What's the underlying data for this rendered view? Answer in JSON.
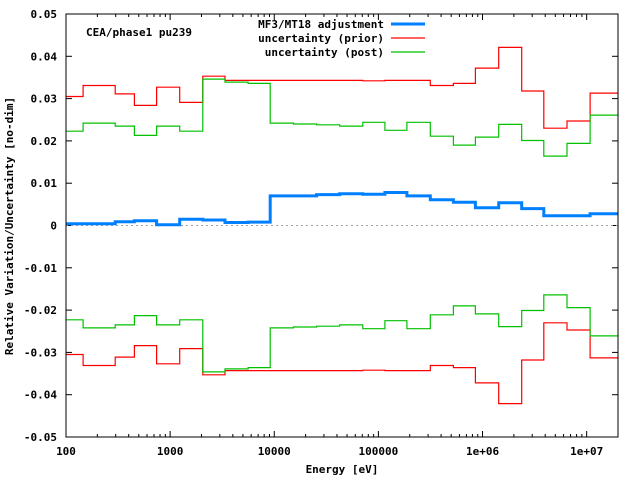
{
  "chart_data": {
    "type": "line",
    "step": true,
    "annotation": "CEA/phase1 pu239",
    "xlabel": "Energy [eV]",
    "ylabel": "Relative Variation/Uncertainty [no-dim]",
    "xscale": "log",
    "xlim": [
      100,
      20000000
    ],
    "ylim": [
      -0.05,
      0.05
    ],
    "xticks": [
      {
        "value": 100,
        "label": "100"
      },
      {
        "value": 1000,
        "label": "1000"
      },
      {
        "value": 10000,
        "label": "10000"
      },
      {
        "value": 100000,
        "label": "100000"
      },
      {
        "value": 1000000,
        "label": "1e+06"
      },
      {
        "value": 10000000,
        "label": "1e+07"
      }
    ],
    "yticks": [
      {
        "value": 0.05,
        "label": "0.05"
      },
      {
        "value": 0.04,
        "label": "0.04"
      },
      {
        "value": 0.03,
        "label": "0.03"
      },
      {
        "value": 0.02,
        "label": "0.02"
      },
      {
        "value": 0.01,
        "label": "0.01"
      },
      {
        "value": 0,
        "label": "0"
      },
      {
        "value": -0.01,
        "label": "-0.01"
      },
      {
        "value": -0.02,
        "label": "-0.02"
      },
      {
        "value": -0.03,
        "label": "-0.03"
      },
      {
        "value": -0.04,
        "label": "-0.04"
      },
      {
        "value": -0.05,
        "label": "-0.05"
      }
    ],
    "legend_position": "top-right",
    "bin_edges": [
      100,
      146,
      297,
      454,
      741,
      1236,
      2061,
      3365,
      5610,
      9140,
      15280,
      25500,
      42500,
      70800,
      115600,
      188000,
      315000,
      525000,
      855000,
      1430000,
      2380000,
      3880000,
      6480000,
      10800000,
      20000000
    ],
    "series": [
      {
        "name": "MF3/MT18 adjustment",
        "color": "#0080ff",
        "mirror": false,
        "values": [
          0.0004,
          0.0004,
          0.0009,
          0.0011,
          0.0002,
          0.0015,
          0.0013,
          0.0007,
          0.0008,
          0.007,
          0.007,
          0.0073,
          0.0075,
          0.0074,
          0.0078,
          0.007,
          0.0061,
          0.0055,
          0.0042,
          0.0054,
          0.004,
          0.0023,
          0.0023,
          0.0028
        ]
      },
      {
        "name": "uncertainty (prior)",
        "color": "#ff0000",
        "mirror": true,
        "values": [
          0.0305,
          0.0331,
          0.0311,
          0.0284,
          0.0327,
          0.0291,
          0.0353,
          0.0343,
          0.0343,
          0.0343,
          0.0343,
          0.0343,
          0.0343,
          0.0342,
          0.0343,
          0.0343,
          0.0331,
          0.0336,
          0.0372,
          0.0421,
          0.0318,
          0.023,
          0.0247,
          0.0313
        ]
      },
      {
        "name": "uncertainty (post)",
        "color": "#00c000",
        "mirror": true,
        "values": [
          0.0223,
          0.0242,
          0.0235,
          0.0213,
          0.0235,
          0.0223,
          0.0346,
          0.0339,
          0.0336,
          0.0242,
          0.024,
          0.0238,
          0.0235,
          0.0244,
          0.0225,
          0.0244,
          0.0211,
          0.019,
          0.0209,
          0.0239,
          0.0201,
          0.0164,
          0.0194,
          0.0261
        ]
      }
    ]
  }
}
